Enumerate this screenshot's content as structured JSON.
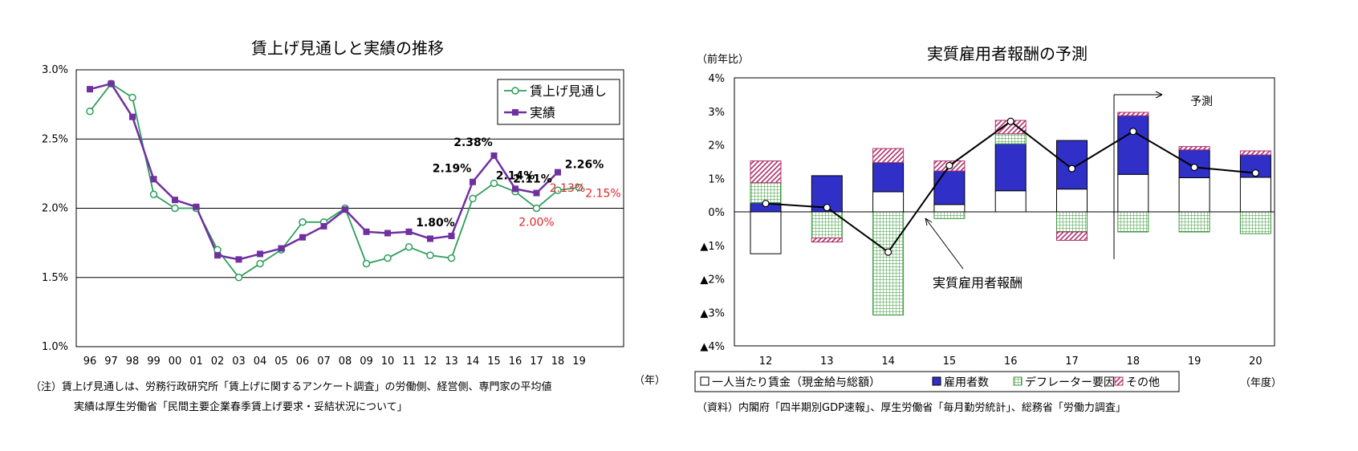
{
  "chart_data": [
    {
      "type": "line",
      "title": "賃上げ見通しと実績の推移",
      "xunit": "（年）",
      "categories": [
        "96",
        "97",
        "98",
        "99",
        "00",
        "01",
        "02",
        "03",
        "04",
        "05",
        "06",
        "07",
        "08",
        "09",
        "10",
        "11",
        "12",
        "13",
        "14",
        "15",
        "16",
        "17",
        "18",
        "19"
      ],
      "ylim": [
        1.0,
        3.0
      ],
      "yticks": [
        "1.0%",
        "1.5%",
        "2.0%",
        "2.5%",
        "3.0%"
      ],
      "series": [
        {
          "name": "賃上げ見通し",
          "color": "#2e9e5b",
          "values": [
            2.7,
            2.9,
            2.8,
            2.1,
            2.0,
            2.0,
            1.7,
            1.5,
            1.6,
            1.7,
            1.9,
            1.9,
            2.0,
            1.6,
            1.64,
            1.72,
            1.66,
            1.64,
            2.07,
            2.18,
            2.12,
            2.0,
            2.13,
            2.15
          ]
        },
        {
          "name": "実績",
          "color": "#7030a0",
          "values": [
            2.86,
            2.9,
            2.66,
            2.21,
            2.06,
            2.01,
            1.66,
            1.63,
            1.67,
            1.71,
            1.79,
            1.87,
            1.99,
            1.83,
            1.82,
            1.83,
            1.78,
            1.8,
            2.19,
            2.38,
            2.14,
            2.11,
            2.26,
            null
          ]
        }
      ],
      "annotations": {
        "jisseki": [
          {
            "i": 17,
            "text": "1.80%"
          },
          {
            "i": 18,
            "text": "2.19%"
          },
          {
            "i": 19,
            "text": "2.38%"
          },
          {
            "i": 20,
            "text": "2.14%"
          },
          {
            "i": 21,
            "text": "2.11%"
          },
          {
            "i": 22,
            "text": "2.26%"
          }
        ],
        "mitoshi": [
          {
            "i": 21,
            "text": "2.00%"
          },
          {
            "i": 22,
            "text": "2.13%"
          },
          {
            "i": 23,
            "text": "2.15%"
          }
        ]
      },
      "notes": [
        "（注）賃上げ見通しは、労務行政研究所「賃上げに関するアンケート調査」の労働側、経営側、専門家の平均値",
        "実績は厚生労働省「民間主要企業春季賃上げ要求・妥結状況について」"
      ]
    },
    {
      "type": "bar",
      "title": "実質雇用者報酬の予測",
      "yunit": "（前年比）",
      "xunit": "（年度）",
      "categories": [
        "12",
        "13",
        "14",
        "15",
        "16",
        "17",
        "18",
        "19",
        "20"
      ],
      "ylim": [
        -4,
        4
      ],
      "yticks": [
        "▲4%",
        "▲3%",
        "▲2%",
        "▲1%",
        "0%",
        "1%",
        "2%",
        "3%",
        "4%"
      ],
      "series": [
        {
          "name": "一人当たり賃金（現金給与総額）",
          "values": [
            -1.25,
            0.0,
            0.6,
            0.22,
            0.63,
            0.68,
            1.12,
            1.02,
            1.03
          ]
        },
        {
          "name": "雇用者数",
          "values": [
            0.27,
            1.08,
            0.87,
            1.0,
            1.4,
            1.45,
            1.75,
            0.83,
            0.67
          ]
        },
        {
          "name": "デフレーター要因",
          "values": [
            0.6,
            -0.78,
            -3.08,
            -0.2,
            0.3,
            -0.6,
            -0.6,
            -0.6,
            -0.65
          ]
        },
        {
          "name": "その他",
          "values": [
            0.65,
            -0.12,
            0.42,
            0.3,
            0.4,
            -0.25,
            0.1,
            0.1,
            0.12
          ]
        }
      ],
      "line": {
        "name": "実質雇用者報酬",
        "values": [
          0.25,
          0.13,
          -1.2,
          1.38,
          2.7,
          1.29,
          2.4,
          1.33,
          1.16
        ]
      },
      "forecast_label": "予測",
      "legend": [
        "一人当たり賃金（現金給与総額）",
        "雇用者数",
        "デフレーター要因",
        "その他"
      ],
      "source": "（資料）内閣府「四半期別GDP速報」、厚生労働省「毎月勤労統計」、総務省「労働力調査」"
    }
  ]
}
